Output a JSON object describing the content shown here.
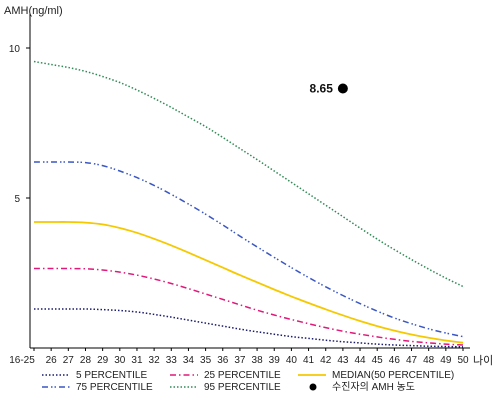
{
  "chart_data": {
    "type": "line",
    "ylabel": "AMH(ng/ml)",
    "xlabel": "나이",
    "ylim": [
      0,
      11
    ],
    "yticks": [
      5,
      10
    ],
    "x": [
      "16-25",
      "26",
      "27",
      "28",
      "29",
      "30",
      "31",
      "32",
      "33",
      "34",
      "35",
      "36",
      "37",
      "38",
      "39",
      "40",
      "41",
      "42",
      "43",
      "44",
      "45",
      "46",
      "47",
      "48",
      "49",
      "50"
    ],
    "series": [
      {
        "name": "5 PERCENTILE",
        "color": "#1a1a6e",
        "dash": "dotted",
        "values": [
          1.3,
          1.3,
          1.3,
          1.3,
          1.28,
          1.25,
          1.2,
          1.12,
          1.03,
          0.93,
          0.83,
          0.73,
          0.63,
          0.54,
          0.46,
          0.38,
          0.32,
          0.26,
          0.21,
          0.17,
          0.13,
          0.1,
          0.08,
          0.06,
          0.05,
          0.04
        ]
      },
      {
        "name": "25 PERCENTILE",
        "color": "#e0197a",
        "dash": "dashdot",
        "values": [
          2.65,
          2.65,
          2.65,
          2.64,
          2.6,
          2.53,
          2.43,
          2.3,
          2.15,
          1.98,
          1.8,
          1.62,
          1.44,
          1.26,
          1.1,
          0.95,
          0.81,
          0.68,
          0.56,
          0.46,
          0.37,
          0.29,
          0.22,
          0.17,
          0.13,
          0.1
        ]
      },
      {
        "name": "MEDIAN(50 PERCENTILE)",
        "color": "#f5c800",
        "dash": "solid",
        "values": [
          4.2,
          4.2,
          4.2,
          4.18,
          4.12,
          4.0,
          3.84,
          3.64,
          3.42,
          3.18,
          2.93,
          2.68,
          2.43,
          2.19,
          1.95,
          1.72,
          1.5,
          1.29,
          1.09,
          0.9,
          0.73,
          0.58,
          0.45,
          0.34,
          0.25,
          0.18
        ]
      },
      {
        "name": "75 PERCENTILE",
        "color": "#3a57c4",
        "dash": "dashdotdot",
        "values": [
          6.2,
          6.2,
          6.2,
          6.18,
          6.08,
          5.9,
          5.68,
          5.42,
          5.12,
          4.8,
          4.46,
          4.1,
          3.73,
          3.37,
          3.02,
          2.68,
          2.35,
          2.04,
          1.75,
          1.48,
          1.23,
          1.0,
          0.81,
          0.64,
          0.5,
          0.38
        ]
      },
      {
        "name": "95 PERCENTILE",
        "color": "#2f8a55",
        "dash": "dotted",
        "values": [
          9.55,
          9.45,
          9.35,
          9.22,
          9.05,
          8.85,
          8.6,
          8.32,
          8.02,
          7.7,
          7.38,
          7.02,
          6.65,
          6.28,
          5.9,
          5.52,
          5.14,
          4.76,
          4.38,
          4.0,
          3.63,
          3.28,
          2.95,
          2.63,
          2.33,
          2.05
        ]
      }
    ],
    "points": [
      {
        "name": "수진자의 AMH 농도",
        "x": "43",
        "y": 8.65,
        "label": "8.65",
        "color": "#000000"
      }
    ],
    "legend_placement": "bottom",
    "grid": false
  }
}
